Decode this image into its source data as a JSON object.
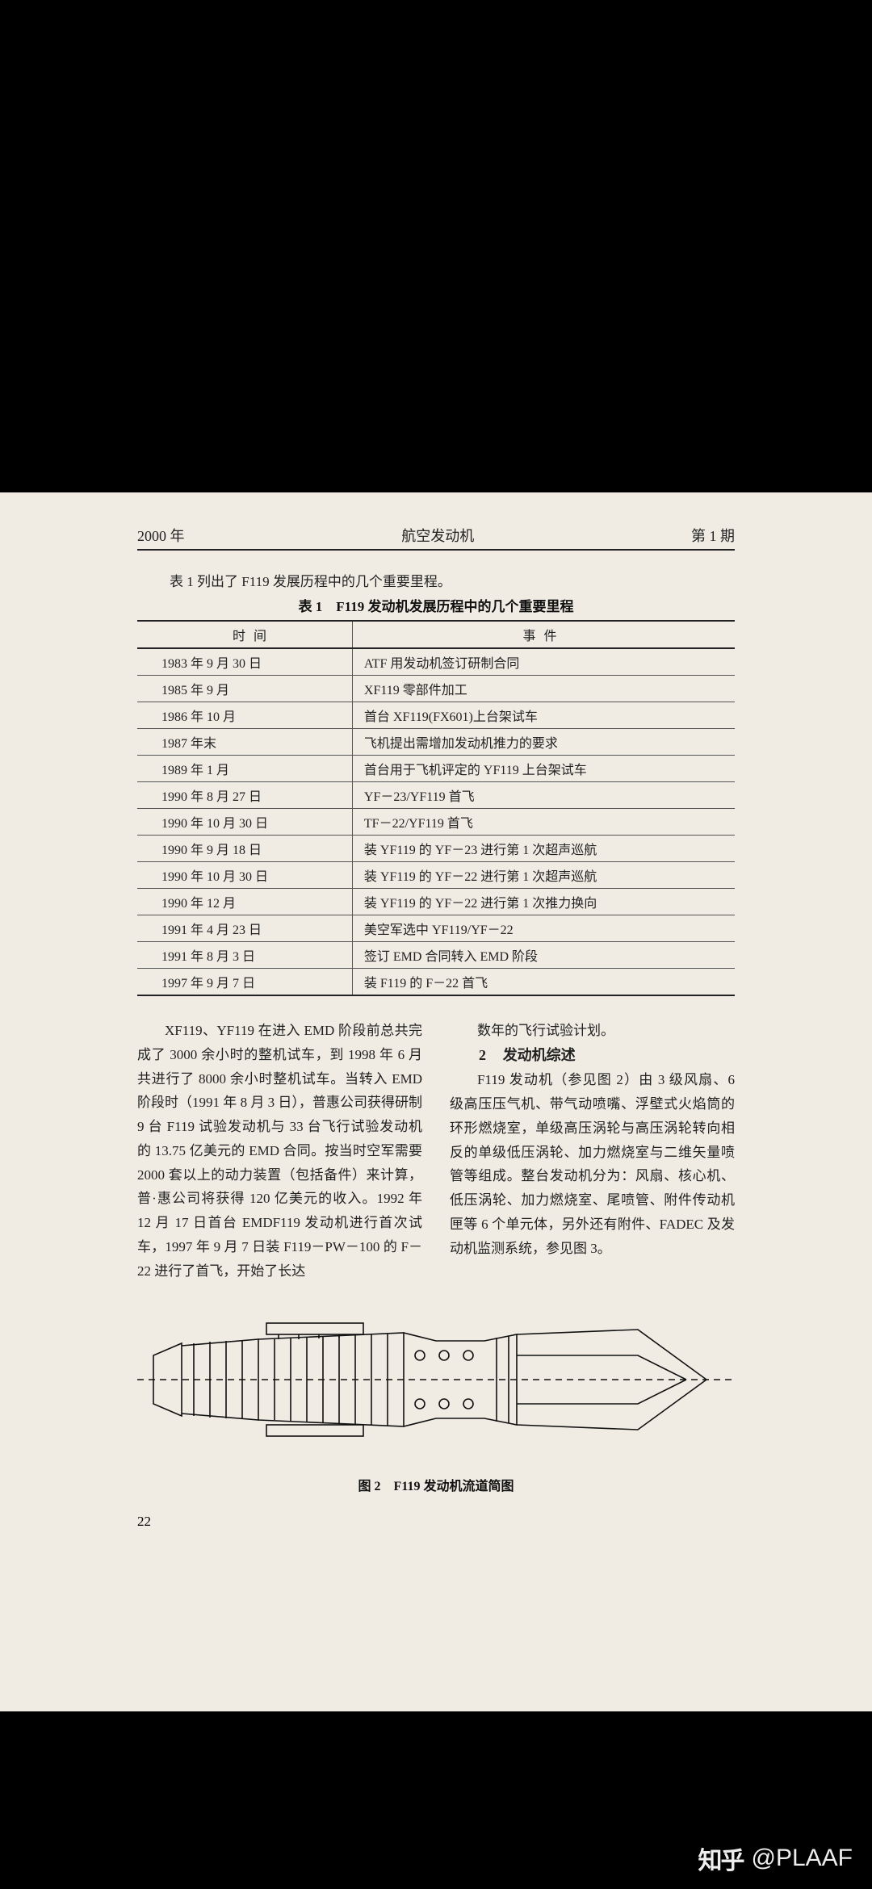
{
  "header": {
    "left": "2000 年",
    "center": "航空发动机",
    "right": "第 1 期"
  },
  "intro": "表 1 列出了 F119 发展历程中的几个重要里程。",
  "table": {
    "caption": "表 1　F119 发动机发展历程中的几个重要里程",
    "head_time": "时间",
    "head_event": "事件",
    "rows": [
      {
        "t": "1983 年 9 月 30 日",
        "e": "ATF 用发动机签订研制合同"
      },
      {
        "t": "1985 年 9 月",
        "e": "XF119 零部件加工"
      },
      {
        "t": "1986 年 10 月",
        "e": "首台 XF119(FX601)上台架试车"
      },
      {
        "t": "1987 年末",
        "e": "飞机提出需增加发动机推力的要求"
      },
      {
        "t": "1989 年 1 月",
        "e": "首台用于飞机评定的 YF119 上台架试车"
      },
      {
        "t": "1990 年 8 月 27 日",
        "e": "YF－23/YF119 首飞"
      },
      {
        "t": "1990 年 10 月 30 日",
        "e": "TF－22/YF119 首飞"
      },
      {
        "t": "1990 年 9 月 18 日",
        "e": "装 YF119 的 YF－23 进行第 1 次超声巡航"
      },
      {
        "t": "1990 年 10 月 30 日",
        "e": "装 YF119 的 YF－22 进行第 1 次超声巡航"
      },
      {
        "t": "1990 年 12 月",
        "e": "装 YF119 的 YF－22 进行第 1 次推力换向"
      },
      {
        "t": "1991 年 4 月 23 日",
        "e": "美空军选中 YF119/YF－22"
      },
      {
        "t": "1991 年 8 月 3 日",
        "e": "签订 EMD 合同转入 EMD 阶段"
      },
      {
        "t": "1997 年 9 月 7 日",
        "e": "装 F119 的 F－22 首飞"
      }
    ]
  },
  "left_para": "XF119、YF119 在进入 EMD 阶段前总共完成了 3000 余小时的整机试车，到 1998 年 6 月共进行了 8000 余小时整机试车。当转入 EMD 阶段时（1991 年 8 月 3 日），普惠公司获得研制 9 台 F119 试验发动机与 33 台飞行试验发动机的 13.75 亿美元的 EMD 合同。按当时空军需要 2000 套以上的动力装置（包括备件）来计算，普·惠公司将获得 120 亿美元的收入。1992 年 12 月 17 日首台 EMDF119 发动机进行首次试车，1997 年 9 月 7 日装 F119－PW－100 的 F－22 进行了首飞，开始了长达",
  "right_top": "数年的飞行试验计划。",
  "section2": {
    "num": "2",
    "title": "发动机综述"
  },
  "right_para": "F119 发动机（参见图 2）由 3 级风扇、6 级高压压气机、带气动喷嘴、浮壁式火焰筒的环形燃烧室，单级高压涡轮与高压涡轮转向相反的单级低压涡轮、加力燃烧室与二维矢量喷管等组成。整台发动机分为：风扇、核心机、低压涡轮、加力燃烧室、尾喷管、附件传动机匣等 6 个单元体，另外还有附件、FADEC 及发动机监测系统，参见图 3。",
  "figure": {
    "caption": "图 2　F119 发动机流道简图"
  },
  "page_number": "22",
  "watermark": {
    "logo": "知乎",
    "handle": "@PLAAF"
  },
  "colors": {
    "page_bg": "#f0ece4",
    "text": "#222222",
    "rule": "#222222",
    "wm": "#eeeeee"
  }
}
